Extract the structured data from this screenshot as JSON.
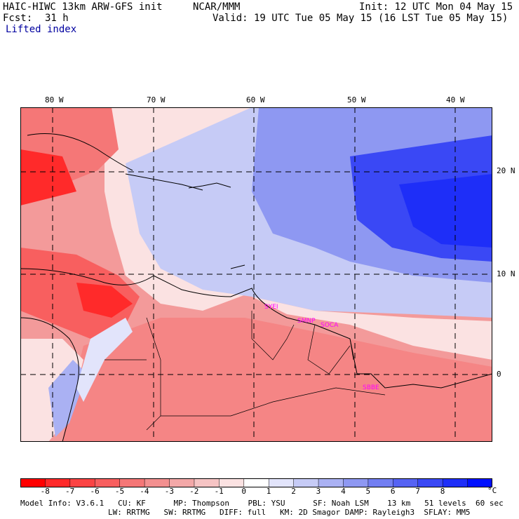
{
  "header": {
    "model": "HAIC-HIWC 13km ARW-GFS init",
    "center": "NCAR/MMM",
    "init": "Init: 12 UTC Mon 04 May 15",
    "fcst_label": "Fcst:",
    "fcst_value": "31 h",
    "valid": "Valid: 19 UTC Tue 05 May 15 (16 LST Tue 05 May 15)",
    "field": "Lifted index"
  },
  "map": {
    "lon_labels": [
      "80 W",
      "70 W",
      "60 W",
      "50 W",
      "40 W"
    ],
    "lat_labels": [
      "20 N",
      "10 N",
      "0"
    ],
    "stations": [
      "SYEI",
      "SMNP",
      "SOCA",
      "SBBE"
    ],
    "station_color": "#ff00ff"
  },
  "colorbar": {
    "ticks": [
      "-8",
      "-7",
      "-6",
      "-5",
      "-4",
      "-3",
      "-2",
      "-1",
      "0",
      "1",
      "2",
      "3",
      "4",
      "5",
      "6",
      "7",
      "8"
    ],
    "unit": "°C",
    "colors": [
      "#ff0000",
      "#ff2a2a",
      "#fb4444",
      "#f85f5f",
      "#f57777",
      "#f39090",
      "#f3a8a8",
      "#f6c4c4",
      "#fbe2e2",
      "#ffffff",
      "#e2e4fb",
      "#c6cbf6",
      "#aab1f3",
      "#8e98f2",
      "#727ef2",
      "#5663f3",
      "#3a48f5",
      "#1e2ef8",
      "#0010ff"
    ]
  },
  "footer": {
    "line1": "Model Info: V3.6.1   CU: KF      MP: Thompson    PBL: YSU      SF: Noah LSM    13 km   51 levels  60 sec",
    "line2": "LW: RRTMG   SW: RRTMG   DIFF: full   KM: 2D Smagor DAMP: Rayleigh3  SFLAY: MM5"
  }
}
